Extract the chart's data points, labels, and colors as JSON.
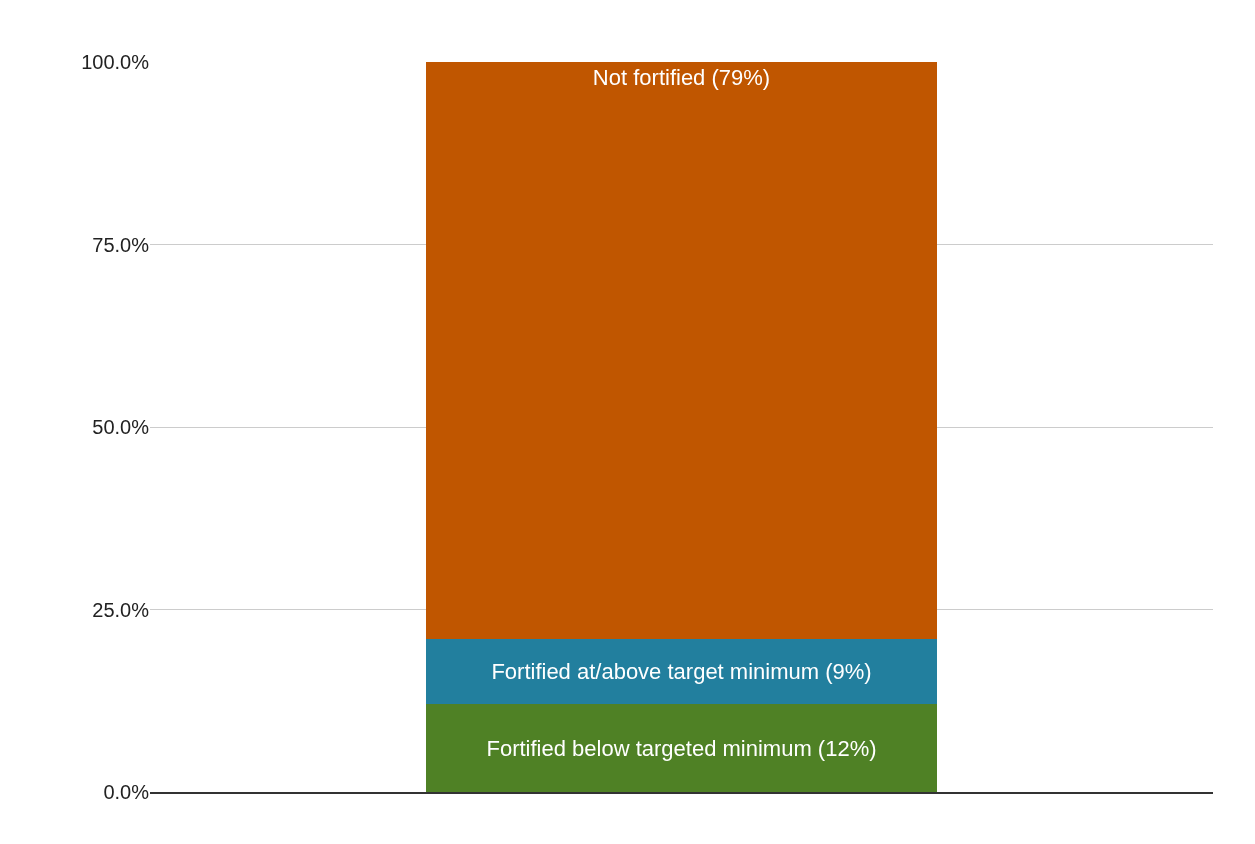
{
  "chart_data": {
    "type": "bar",
    "stacked": true,
    "categories": [
      null
    ],
    "series": [
      {
        "name": "Fortified below targeted minimum (12%)",
        "color": "#4f8125",
        "values": [
          12
        ]
      },
      {
        "name": "Fortified at/above target minimum (9%)",
        "color": "#227f9e",
        "values": [
          9
        ]
      },
      {
        "name": "Not fortified (79%)",
        "color": "#c05600",
        "values": [
          79
        ]
      }
    ],
    "ylim": [
      0,
      100
    ],
    "yticks": [
      {
        "value": 0,
        "label": "0.0%"
      },
      {
        "value": 25,
        "label": "25.0%"
      },
      {
        "value": 50,
        "label": "50.0%"
      },
      {
        "value": 75,
        "label": "75.0%"
      },
      {
        "value": 100,
        "label": "100.0%"
      }
    ],
    "grid": "y",
    "legend": false
  }
}
